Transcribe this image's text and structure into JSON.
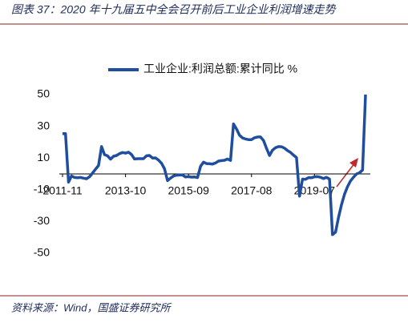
{
  "chart_data": {
    "type": "line",
    "title": "图表 37：2020 年十九届五中全会召开前后工业企业利润增速走势",
    "source": "资料来源：Wind，国盛证券研究所",
    "categories": [
      "2011-11",
      "2011-12",
      "2012-02",
      "2012-03",
      "2012-04",
      "2012-05",
      "2012-06",
      "2012-07",
      "2012-08",
      "2012-09",
      "2012-10",
      "2012-11",
      "2012-12",
      "2013-02",
      "2013-03",
      "2013-04",
      "2013-05",
      "2013-06",
      "2013-07",
      "2013-08",
      "2013-09",
      "2013-10",
      "2013-11",
      "2013-12",
      "2014-02",
      "2014-03",
      "2014-04",
      "2014-05",
      "2014-06",
      "2014-07",
      "2014-08",
      "2014-09",
      "2014-10",
      "2014-11",
      "2014-12",
      "2015-02",
      "2015-03",
      "2015-04",
      "2015-05",
      "2015-06",
      "2015-07",
      "2015-08",
      "2015-09",
      "2015-10",
      "2015-11",
      "2015-12",
      "2016-02",
      "2016-03",
      "2016-04",
      "2016-05",
      "2016-06",
      "2016-07",
      "2016-08",
      "2016-09",
      "2016-10",
      "2016-11",
      "2016-12",
      "2017-02",
      "2017-03",
      "2017-04",
      "2017-05",
      "2017-06",
      "2017-07",
      "2017-08",
      "2017-09",
      "2017-10",
      "2017-11",
      "2017-12",
      "2018-02",
      "2018-03",
      "2018-04",
      "2018-05",
      "2018-06",
      "2018-07",
      "2018-08",
      "2018-09",
      "2018-10",
      "2018-11",
      "2018-12",
      "2019-02",
      "2019-03",
      "2019-04",
      "2019-05",
      "2019-06",
      "2019-07",
      "2019-08",
      "2019-09",
      "2019-10",
      "2019-11",
      "2019-12",
      "2020-02",
      "2020-03",
      "2020-04",
      "2020-05",
      "2020-06",
      "2020-07",
      "2020-08",
      "2020-09",
      "2020-10",
      "2020-11",
      "2020-12",
      "2021-02"
    ],
    "series": [
      {
        "name": "工业企业:利润总额:累计同比 %",
        "color": "#1f4e9e",
        "values": [
          25.4,
          25.4,
          -5.2,
          -1.3,
          -2.2,
          -2.4,
          -2.2,
          -2.7,
          -3.1,
          -1.8,
          0.5,
          3.0,
          5.3,
          17.2,
          12.1,
          11.4,
          9.3,
          11.1,
          11.6,
          12.8,
          13.5,
          13.1,
          13.7,
          12.2,
          9.4,
          9.6,
          9.6,
          9.6,
          11.4,
          11.6,
          10.0,
          10.1,
          8.7,
          6.7,
          3.3,
          -4.2,
          -2.7,
          -1.3,
          -0.8,
          -0.7,
          -0.7,
          -1.9,
          -1.7,
          -2.0,
          -1.9,
          -2.3,
          4.8,
          7.4,
          6.5,
          6.4,
          6.2,
          6.9,
          8.1,
          8.4,
          8.6,
          9.4,
          8.5,
          31.5,
          28.3,
          24.4,
          22.7,
          22.0,
          21.6,
          21.6,
          22.8,
          23.3,
          23.3,
          21.0,
          16.1,
          11.6,
          15.0,
          16.5,
          17.2,
          17.1,
          16.2,
          14.7,
          13.6,
          11.8,
          10.3,
          -14.0,
          -3.3,
          -3.4,
          -2.3,
          -2.4,
          -1.8,
          -1.7,
          -2.1,
          -2.9,
          -2.1,
          -3.3,
          -38.3,
          -36.7,
          -27.4,
          -19.3,
          -12.8,
          -8.1,
          -4.4,
          -2.1,
          0.0,
          0.7,
          2.4,
          50
        ]
      }
    ],
    "xticks": [
      "2011-11",
      "2013-10",
      "2015-09",
      "2017-08",
      "2019-07"
    ],
    "ylim": [
      -50,
      50
    ],
    "yticks": [
      -50,
      -30,
      -10,
      10,
      30,
      50
    ]
  }
}
